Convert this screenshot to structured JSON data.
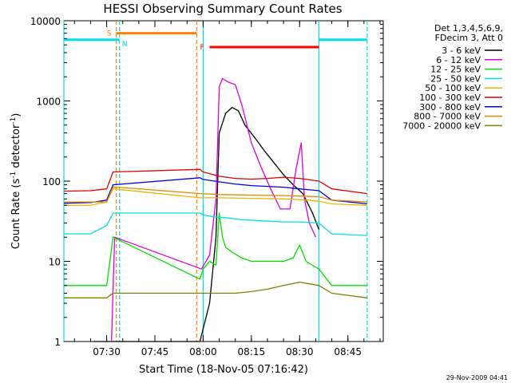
{
  "chart_data": {
    "type": "line",
    "title": "HESSI Observing Summary Count Rates",
    "xlabel": "Start Time (18-Nov-05 07:16:42)",
    "ylabel_main": "Count Rate (s",
    "ylabel_sup1": "-1",
    "ylabel_mid": " detector",
    "ylabel_sup2": "-1",
    "ylabel_end": ")",
    "x_axis": {
      "unit": "minutes",
      "range": [
        "07:16:42",
        "08:56:00"
      ],
      "scale": "linear"
    },
    "y_axis": {
      "scale": "log",
      "range": [
        1,
        10000
      ]
    },
    "x_ticks": [
      {
        "time": "07:30",
        "label": "07:30"
      },
      {
        "time": "07:45",
        "label": "07:45"
      },
      {
        "time": "08:00",
        "label": "08:00"
      },
      {
        "time": "08:15",
        "label": "08:15"
      },
      {
        "time": "08:30",
        "label": "08:30"
      },
      {
        "time": "08:45",
        "label": "08:45"
      }
    ],
    "y_ticks": [
      {
        "value": 1,
        "label": "1"
      },
      {
        "value": 10,
        "label": "10"
      },
      {
        "value": 100,
        "label": "100"
      },
      {
        "value": 1000,
        "label": "1000"
      },
      {
        "value": 10000,
        "label": "10000"
      }
    ],
    "legend_header": [
      "Det 1,3,4,5,6,9,",
      "FDecim 3, Att 0"
    ],
    "legend_position": "right",
    "series": [
      {
        "name": "3 - 6 keV",
        "color": "#000000",
        "x": [
          "07:26:00",
          "07:30:00",
          "07:32:00",
          "07:59:00",
          "08:02:00",
          "08:04:00",
          "08:05:00",
          "08:07:00",
          "08:09:00",
          "08:11:00",
          "08:13:00",
          "08:16:00",
          "08:19:00",
          "08:22:00",
          "08:25:00",
          "08:28:00",
          "08:31:00",
          "08:34:00",
          "08:36:00"
        ],
        "y": [
          1,
          1,
          1,
          1,
          3,
          20,
          400,
          700,
          830,
          750,
          500,
          350,
          240,
          170,
          120,
          90,
          70,
          40,
          25
        ]
      },
      {
        "name": "6 - 12 keV",
        "color": "#dd00dd",
        "x": [
          "07:31:30",
          "07:32:30",
          "07:59:30",
          "08:02:00",
          "08:04:00",
          "08:05:00",
          "08:06:00",
          "08:08:00",
          "08:10:00",
          "08:12:00",
          "08:15:00",
          "08:18:00",
          "08:21:00",
          "08:24:00",
          "08:27:00",
          "08:29:00",
          "08:30:30",
          "08:31:30",
          "08:33:00",
          "08:35:00"
        ],
        "y": [
          1,
          20,
          8,
          12,
          60,
          1500,
          1900,
          1700,
          1600,
          900,
          300,
          150,
          80,
          45,
          45,
          150,
          300,
          60,
          30,
          20
        ]
      },
      {
        "name": "12 - 25 keV",
        "color": "#00dd00",
        "x": [
          "07:16:42",
          "07:30:00",
          "07:31:00",
          "07:32:00",
          "07:59:00",
          "08:00:00",
          "08:02:00",
          "08:04:00",
          "08:05:00",
          "08:06:00",
          "08:07:00",
          "08:09:00",
          "08:12:00",
          "08:15:00",
          "08:20:00",
          "08:25:00",
          "08:28:00",
          "08:30:00",
          "08:32:00",
          "08:36:00",
          "08:40:00",
          "08:51:00"
        ],
        "y": [
          5,
          5,
          10,
          20,
          6,
          8,
          10,
          9,
          40,
          20,
          15,
          13,
          11,
          10,
          10,
          10,
          11,
          16,
          10,
          8,
          5,
          5
        ]
      },
      {
        "name": "25 - 50 keV",
        "color": "#00e0e0",
        "x": [
          "07:16:42",
          "07:25:00",
          "07:30:00",
          "07:32:00",
          "07:59:00",
          "08:00:00",
          "08:03:00",
          "08:07:00",
          "08:12:00",
          "08:18:00",
          "08:25:00",
          "08:30:00",
          "08:36:00",
          "08:40:00",
          "08:51:00"
        ],
        "y": [
          22,
          22,
          28,
          40,
          40,
          38,
          36,
          35,
          33,
          32,
          31,
          31,
          30,
          22,
          21
        ]
      },
      {
        "name": "50 - 100 keV",
        "color": "#e8b800",
        "x": [
          "07:16:42",
          "07:25:00",
          "07:30:00",
          "07:32:00",
          "07:59:00",
          "08:05:00",
          "08:15:00",
          "08:25:00",
          "08:33:00",
          "08:36:00",
          "08:40:00",
          "08:51:00"
        ],
        "y": [
          50,
          50,
          55,
          80,
          62,
          62,
          61,
          60,
          58,
          56,
          52,
          50
        ]
      },
      {
        "name": "100 - 300 keV",
        "color": "#dd0000",
        "x": [
          "07:16:42",
          "07:25:00",
          "07:30:00",
          "07:32:00",
          "07:59:00",
          "08:00:00",
          "08:05:00",
          "08:10:00",
          "08:15:00",
          "08:20:00",
          "08:25:00",
          "08:30:00",
          "08:36:00",
          "08:40:00",
          "08:51:00"
        ],
        "y": [
          75,
          76,
          80,
          130,
          140,
          130,
          115,
          108,
          106,
          108,
          112,
          108,
          100,
          80,
          70
        ]
      },
      {
        "name": "300 - 800 keV",
        "color": "#0000dd",
        "x": [
          "07:16:42",
          "07:25:00",
          "07:30:00",
          "07:32:00",
          "07:59:00",
          "08:00:00",
          "08:05:00",
          "08:10:00",
          "08:15:00",
          "08:20:00",
          "08:25:00",
          "08:30:00",
          "08:36:00",
          "08:40:00",
          "08:51:00"
        ],
        "y": [
          53,
          54,
          58,
          90,
          110,
          105,
          98,
          92,
          88,
          86,
          84,
          80,
          76,
          58,
          52
        ]
      },
      {
        "name": "800 - 7000 keV",
        "color": "#dd8800",
        "x": [
          "07:16:42",
          "07:30:00",
          "07:32:00",
          "07:59:00",
          "08:05:00",
          "08:15:00",
          "08:25:00",
          "08:36:00",
          "08:40:00",
          "08:51:00"
        ],
        "y": [
          55,
          55,
          85,
          70,
          68,
          67,
          66,
          64,
          58,
          55
        ]
      },
      {
        "name": "7000 - 20000 keV",
        "color": "#808000",
        "x": [
          "07:16:42",
          "07:25:00",
          "07:30:00",
          "07:32:00",
          "07:59:00",
          "08:00:00",
          "08:05:00",
          "08:10:00",
          "08:15:00",
          "08:20:00",
          "08:25:00",
          "08:30:00",
          "08:36:00",
          "08:40:00",
          "08:51:00"
        ],
        "y": [
          3.5,
          3.5,
          3.5,
          4,
          4,
          4,
          4,
          4,
          4.2,
          4.5,
          5,
          5.5,
          5,
          4,
          3.5
        ]
      }
    ],
    "flags": [
      {
        "label": "S",
        "color": "#ff8000",
        "start": "07:33:00",
        "end": "07:58:00",
        "y": 7000,
        "show_label": true
      },
      {
        "label": "N",
        "color": "#00e0e0",
        "start": "07:16:42",
        "end": "07:33:00",
        "y": 5800,
        "show_label": false
      },
      {
        "label": "N",
        "color": "#00e0e0",
        "start": "07:33:00",
        "end": "07:34:00",
        "y": 5800,
        "show_label": true
      },
      {
        "label": "N",
        "color": "#00e0e0",
        "start": "08:36:00",
        "end": "08:51:00",
        "y": 5800,
        "show_label": false
      },
      {
        "label": "F",
        "color": "#ff0000",
        "start": "08:02:00",
        "end": "08:36:00",
        "y": 4700,
        "show_label": true
      }
    ],
    "vertical_markers": [
      {
        "time": "07:16:42",
        "color": "#00e0e0",
        "style": "solid"
      },
      {
        "time": "07:33:00",
        "color": "#ff8000",
        "style": "dashed"
      },
      {
        "time": "07:34:00",
        "color": "#00e0e0",
        "style": "dashed"
      },
      {
        "time": "07:58:00",
        "color": "#ff8000",
        "style": "dashed"
      },
      {
        "time": "08:00:00",
        "color": "#00e0e0",
        "style": "solid"
      },
      {
        "time": "08:36:00",
        "color": "#00e0e0",
        "style": "solid"
      },
      {
        "time": "08:51:00",
        "color": "#00e0e0",
        "style": "dashed"
      }
    ],
    "footer_timestamp": "29-Nov-2009 04:41"
  }
}
